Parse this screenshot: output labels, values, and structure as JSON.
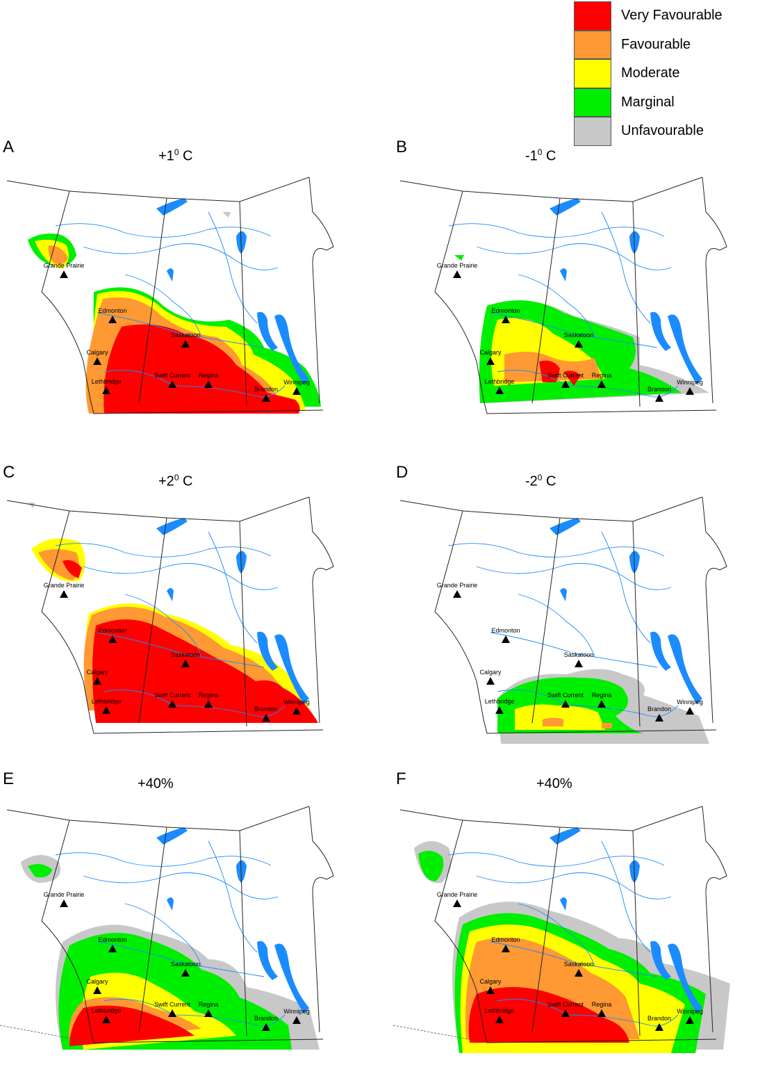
{
  "legend": [
    {
      "label": "Very Favourable",
      "color": "#ff0000"
    },
    {
      "label": "Favourable",
      "color": "#ff9933"
    },
    {
      "label": "Moderate",
      "color": "#ffff00"
    },
    {
      "label": "Marginal",
      "color": "#00ee00"
    },
    {
      "label": "Unfavourable",
      "color": "#c8c8c8"
    }
  ],
  "panels": {
    "A": {
      "letter": "A",
      "title_base": "+1",
      "title_sup": "0",
      "title_unit": " C"
    },
    "B": {
      "letter": "B",
      "title_base": "-1",
      "title_sup": "0",
      "title_unit": " C"
    },
    "C": {
      "letter": "C",
      "title_base": "+2",
      "title_sup": "0",
      "title_unit": " C"
    },
    "D": {
      "letter": "D",
      "title_base": "-2",
      "title_sup": "0",
      "title_unit": " C"
    },
    "E": {
      "letter": "E",
      "title_base": "+40%",
      "title_sup": "",
      "title_unit": ""
    },
    "F": {
      "letter": "F",
      "title_base": "+40%",
      "title_sup": "",
      "title_unit": ""
    }
  },
  "cities": {
    "grande_prairie": "Grande Prairie",
    "edmonton": "Edmonton",
    "calgary": "Calgary",
    "lethbridge": "Lethbridge",
    "saskatoon": "Saskatoon",
    "swift_current": "Swift Current",
    "regina": "Regina",
    "brandon": "Brandon",
    "winnipeg": "Winnipeg"
  },
  "colors": {
    "water": "#1a8cff",
    "border": "#000000"
  }
}
